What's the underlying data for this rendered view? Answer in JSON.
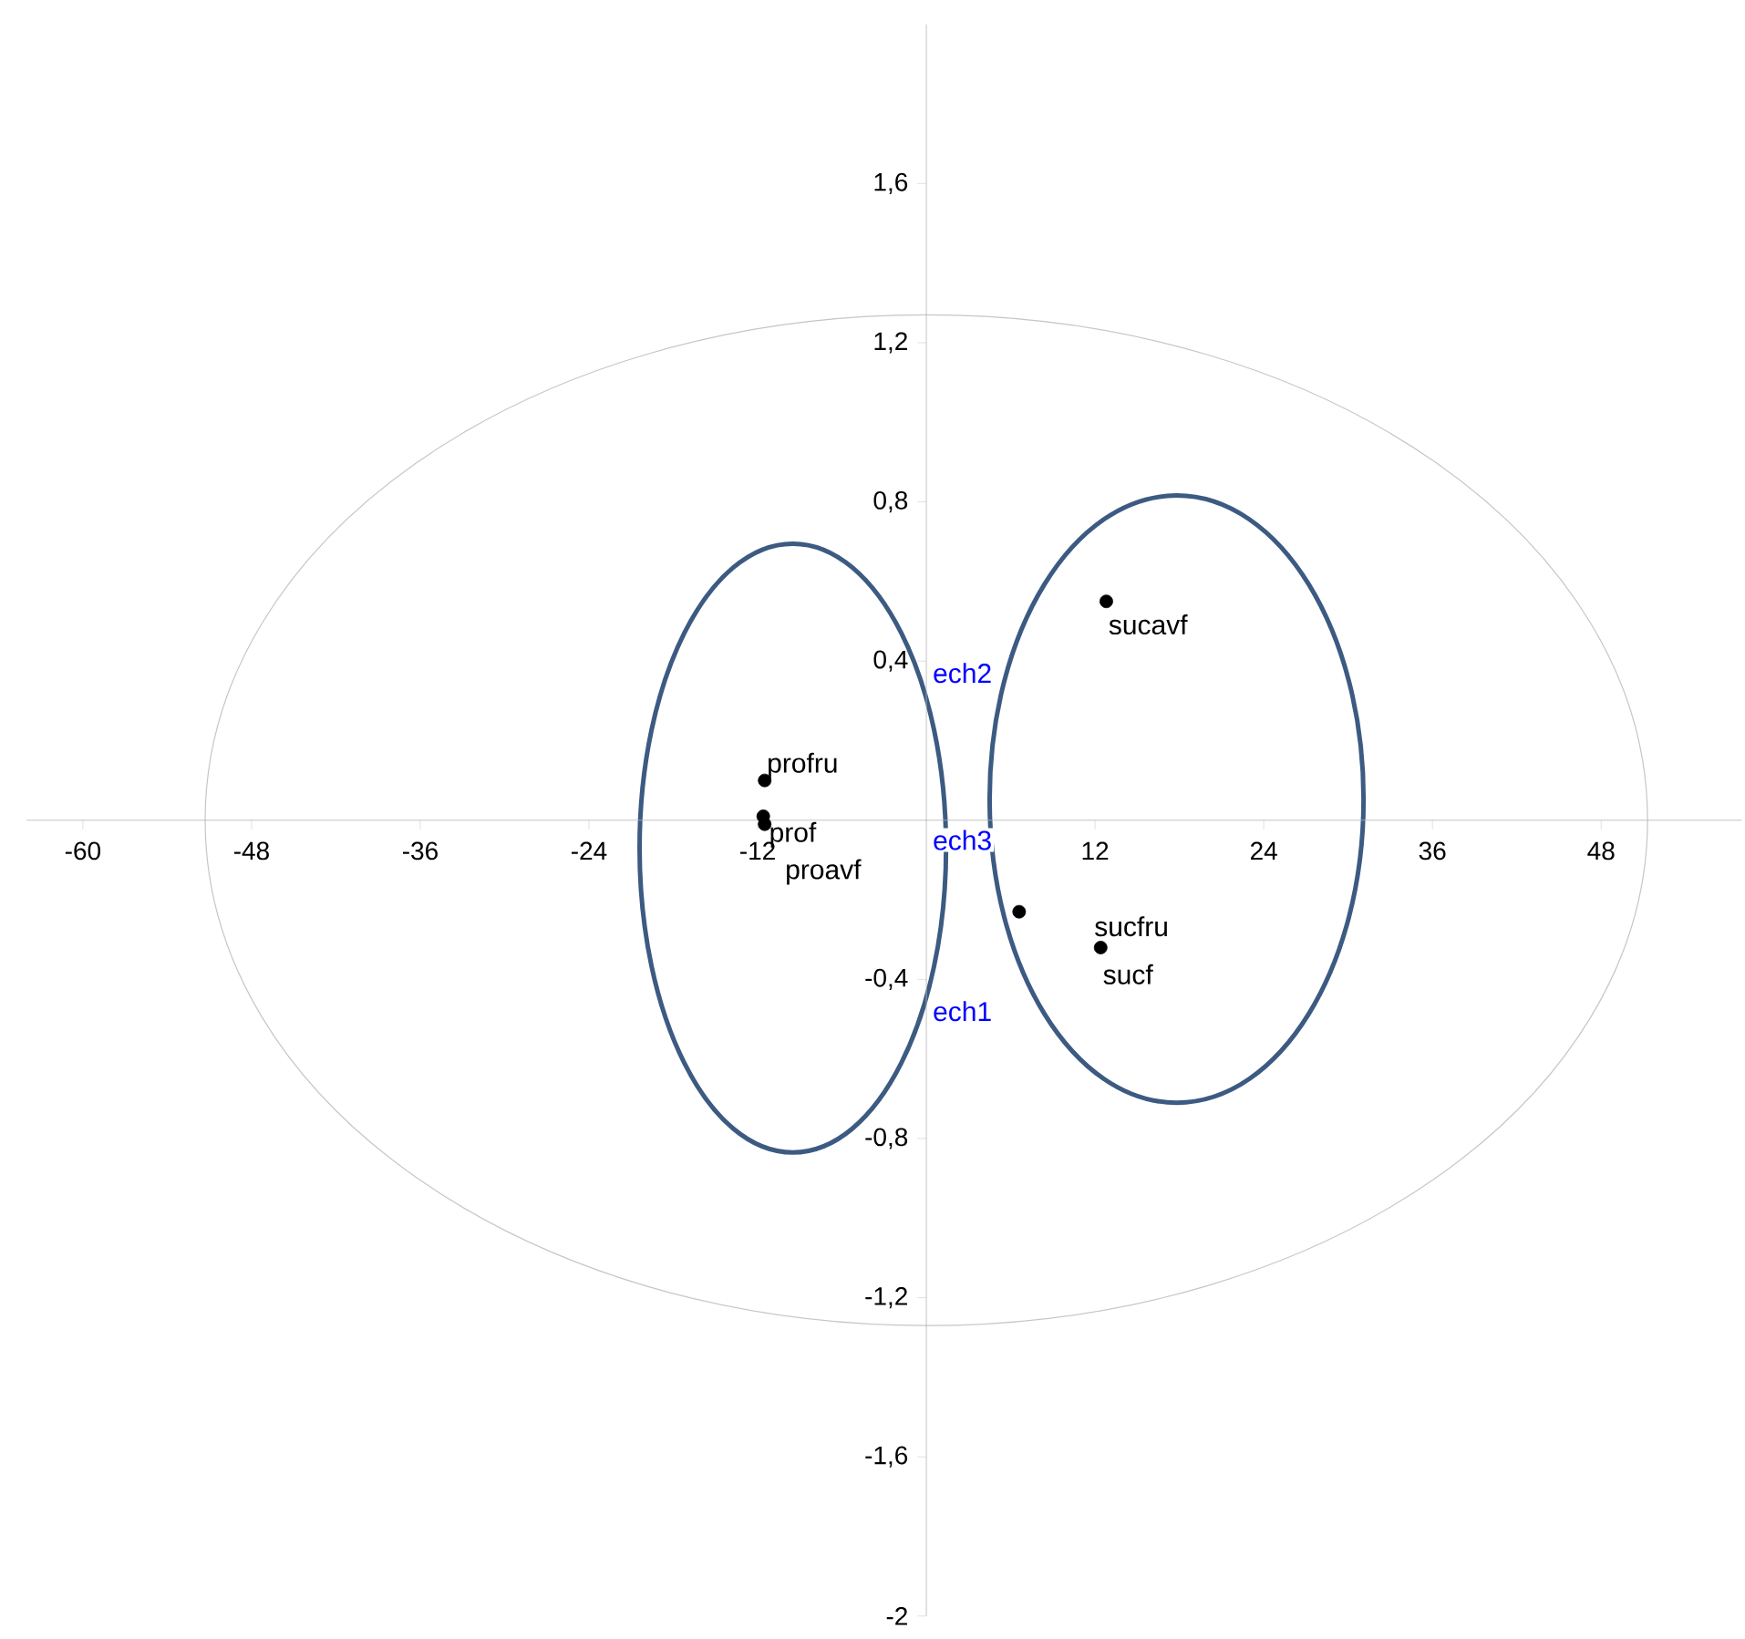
{
  "chart_data": {
    "type": "scatter",
    "xlim": [
      -64,
      58
    ],
    "ylim": [
      -2,
      2
    ],
    "xticks": [
      -60,
      -48,
      -36,
      -24,
      -12,
      12,
      24,
      36,
      48
    ],
    "yticks": [
      {
        "value": 1.6,
        "label": "1,6"
      },
      {
        "value": 1.2,
        "label": "1,2"
      },
      {
        "value": 0.8,
        "label": "0,8"
      },
      {
        "value": 0.4,
        "label": "0,4"
      },
      {
        "value": -0.4,
        "label": "-0,4"
      },
      {
        "value": -0.8,
        "label": "-0,8"
      },
      {
        "value": -1.2,
        "label": "-1,2"
      },
      {
        "value": -1.6,
        "label": "-1,6"
      },
      {
        "value": -2,
        "label": "-2"
      }
    ],
    "grid": false,
    "series": [
      {
        "name": "profru",
        "color": "#000000",
        "x": [
          -11.5
        ],
        "values": [
          0.1
        ]
      },
      {
        "name": "prof",
        "color": "#000000",
        "x": [
          -11.6
        ],
        "values": [
          0.01
        ]
      },
      {
        "name": "proavf",
        "color": "#000000",
        "x": [
          -11.5
        ],
        "values": [
          -0.01
        ]
      },
      {
        "name": "sucavf",
        "color": "#000000",
        "x": [
          12.8
        ],
        "values": [
          0.55
        ]
      },
      {
        "name": "sucfru",
        "color": "#000000",
        "x": [
          6.6
        ],
        "values": [
          -0.23
        ]
      },
      {
        "name": "sucf",
        "color": "#000000",
        "x": [
          12.4
        ],
        "values": [
          -0.32
        ]
      }
    ],
    "annotations": [
      "ech2",
      "ech3",
      "ech1"
    ]
  }
}
